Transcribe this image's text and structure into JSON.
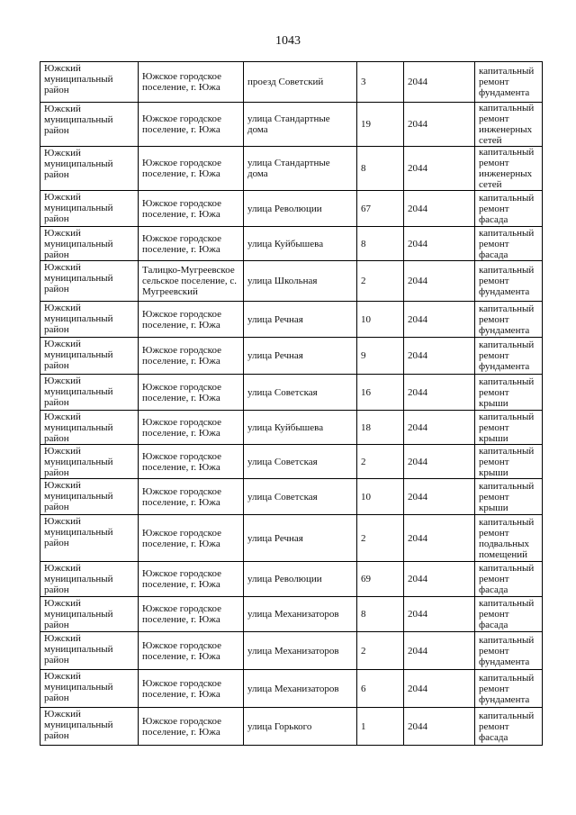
{
  "page_number": "1043",
  "rows": [
    [
      "Южский муниципальный район",
      "Южское городское поселение, г. Южа",
      "проезд Советский",
      "3",
      "2044",
      "капитальный ремонт фундамента"
    ],
    [
      "Южский муниципальный район",
      "Южское городское поселение, г. Южа",
      "улица Стандартные дома",
      "19",
      "2044",
      "капитальный ремонт инженерных сетей"
    ],
    [
      "Южский муниципальный район",
      "Южское городское поселение, г. Южа",
      "улица Стандартные дома",
      "8",
      "2044",
      "капитальный ремонт инженерных сетей"
    ],
    [
      "Южский муниципальный район",
      "Южское городское поселение, г. Южа",
      "улица Революции",
      "67",
      "2044",
      "капитальный ремонт фасада"
    ],
    [
      "Южский муниципальный район",
      "Южское городское поселение, г. Южа",
      "улица Куйбышева",
      "8",
      "2044",
      "капитальный ремонт фасада"
    ],
    [
      "Южский муниципальный район",
      "Талицко-Мугреевское сельское поселение, с. Мугреевский",
      "улица Школьная",
      "2",
      "2044",
      "капитальный ремонт фундамента"
    ],
    [
      "Южский муниципальный район",
      "Южское городское поселение, г. Южа",
      "улица Речная",
      "10",
      "2044",
      "капитальный ремонт фундамента"
    ],
    [
      "Южский муниципальный район",
      "Южское городское поселение, г. Южа",
      "улица Речная",
      "9",
      "2044",
      "капитальный ремонт фундамента"
    ],
    [
      "Южский муниципальный район",
      "Южское городское поселение, г. Южа",
      "улица Советская",
      "16",
      "2044",
      "капитальный ремонт крыши"
    ],
    [
      "Южский муниципальный район",
      "Южское городское поселение, г. Южа",
      "улица Куйбышева",
      "18",
      "2044",
      "капитальный ремонт крыши"
    ],
    [
      "Южский муниципальный район",
      "Южское городское поселение, г. Южа",
      "улица Советская",
      "2",
      "2044",
      "капитальный ремонт крыши"
    ],
    [
      "Южский муниципальный район",
      "Южское городское поселение, г. Южа",
      "улица Советская",
      "10",
      "2044",
      "капитальный ремонт крыши"
    ],
    [
      "Южский муниципальный район",
      "Южское городское поселение, г. Южа",
      "улица Речная",
      "2",
      "2044",
      "капитальный ремонт подвальных помещений"
    ],
    [
      "Южский муниципальный район",
      "Южское городское поселение, г. Южа",
      "улица Революции",
      "69",
      "2044",
      "капитальный ремонт фасада"
    ],
    [
      "Южский муниципальный район",
      "Южское городское поселение, г. Южа",
      "улица Механизаторов",
      "8",
      "2044",
      "капитальный ремонт фасада"
    ],
    [
      "Южский муниципальный район",
      "Южское городское поселение, г. Южа",
      "улица Механизаторов",
      "2",
      "2044",
      "капитальный ремонт фундамента"
    ],
    [
      "Южский муниципальный район",
      "Южское городское поселение, г. Южа",
      "улица Механизаторов",
      "6",
      "2044",
      "капитальный ремонт фундамента"
    ],
    [
      "Южский муниципальный район",
      "Южское городское поселение, г. Южа",
      "улица Горького",
      "1",
      "2044",
      "капитальный ремонт фасада"
    ]
  ]
}
